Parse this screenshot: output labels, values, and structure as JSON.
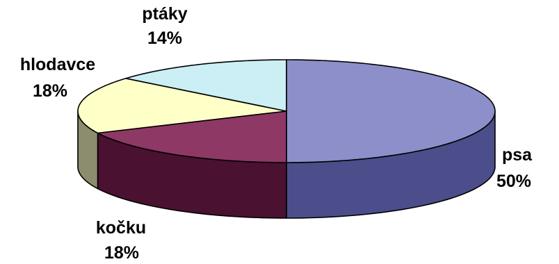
{
  "chart_data": {
    "type": "pie",
    "title": "",
    "slices": [
      {
        "label": "psa",
        "value": 50,
        "value_label": "50%",
        "color_top": "#8C8FC9",
        "color_side": "#4B4E8A"
      },
      {
        "label": "kočku",
        "value": 18,
        "value_label": "18%",
        "color_top": "#8E3866",
        "color_side": "#4A1130"
      },
      {
        "label": "hlodavce",
        "value": 18,
        "value_label": "18%",
        "color_top": "#FFFFC8",
        "color_side": "#8C8C6E"
      },
      {
        "label": "ptáky",
        "value": 14,
        "value_label": "14%",
        "color_top": "#CCEEF5",
        "color_side": "#7FA3AB"
      }
    ],
    "start_angle_deg": 90,
    "direction": "clockwise",
    "style": "3d"
  }
}
